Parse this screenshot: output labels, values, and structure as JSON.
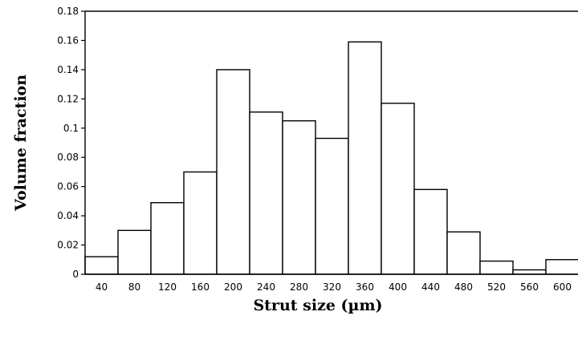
{
  "chart_data": {
    "type": "bar",
    "title": "",
    "xlabel": "Strut size (µm)",
    "ylabel": "Volume fraction",
    "categories": [
      "40",
      "80",
      "120",
      "160",
      "200",
      "240",
      "280",
      "320",
      "360",
      "400",
      "440",
      "480",
      "520",
      "560",
      "600"
    ],
    "values": [
      0.012,
      0.03,
      0.049,
      0.07,
      0.14,
      0.111,
      0.105,
      0.093,
      0.159,
      0.117,
      0.058,
      0.029,
      0.009,
      0.003,
      0.01
    ],
    "yticks": [
      "0",
      "0.02",
      "0.04",
      "0.06",
      "0.08",
      "0.1",
      "0.12",
      "0.14",
      "0.16",
      "0.18"
    ],
    "ylim": [
      0,
      0.18
    ],
    "grid": false,
    "legend": "none",
    "bar_fill": "#ffffff",
    "bar_stroke": "#000000"
  }
}
